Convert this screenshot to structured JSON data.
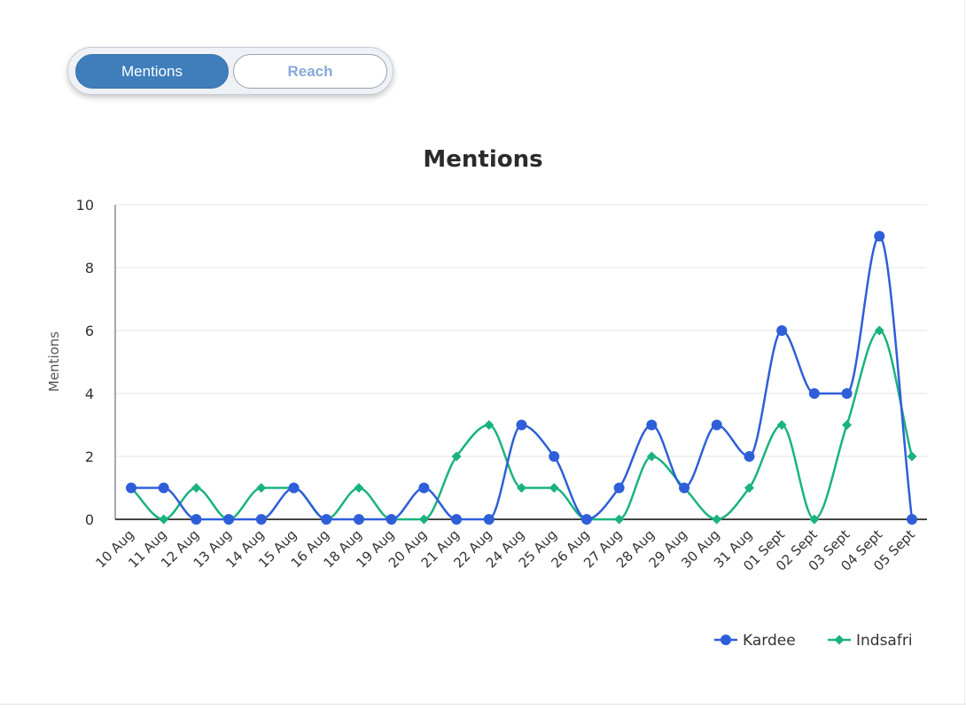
{
  "toggle": {
    "mentions_label": "Mentions",
    "reach_label": "Reach",
    "active": "Mentions"
  },
  "colors": {
    "accent": "#3f7dbb",
    "kardee": "#2e5fd8",
    "indsafri": "#1ab37d",
    "grid": "#e6e6e6",
    "axis": "#333333"
  },
  "chart_data": {
    "type": "line",
    "title": "Mentions",
    "xlabel": "",
    "ylabel": "Mentions",
    "ylim": [
      0,
      10
    ],
    "yticks": [
      0,
      2,
      4,
      6,
      8,
      10
    ],
    "grid": true,
    "legend_position": "bottom-right",
    "smooth": true,
    "categories": [
      "10 Aug",
      "11 Aug",
      "12 Aug",
      "13 Aug",
      "14 Aug",
      "15 Aug",
      "16 Aug",
      "18 Aug",
      "19 Aug",
      "20 Aug",
      "21 Aug",
      "22 Aug",
      "24 Aug",
      "25 Aug",
      "26 Aug",
      "27 Aug",
      "28 Aug",
      "29 Aug",
      "30 Aug",
      "31 Aug",
      "01 Sept",
      "02 Sept",
      "03 Sept",
      "04 Sept",
      "05 Sept"
    ],
    "series": [
      {
        "name": "Kardee",
        "marker": "circle",
        "values": [
          1,
          1,
          0,
          0,
          0,
          1,
          0,
          0,
          0,
          1,
          0,
          0,
          3,
          2,
          0,
          1,
          3,
          1,
          3,
          2,
          6,
          4,
          4,
          9,
          0
        ]
      },
      {
        "name": "Indsafri",
        "marker": "diamond",
        "values": [
          1,
          0,
          1,
          0,
          1,
          1,
          0,
          1,
          0,
          0,
          2,
          3,
          1,
          1,
          0,
          0,
          2,
          1,
          0,
          1,
          3,
          0,
          3,
          6,
          2
        ]
      }
    ]
  }
}
